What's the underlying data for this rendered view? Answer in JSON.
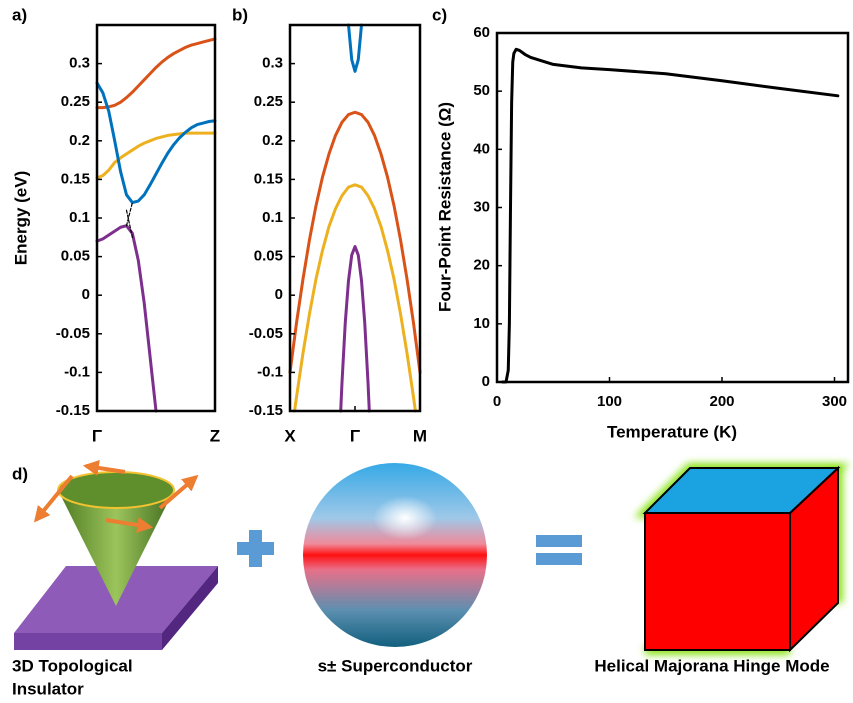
{
  "chart_data": [
    {
      "type": "line",
      "panel_label": "a)",
      "ylabel": "Energy (eV)",
      "xlim": [
        0,
        1
      ],
      "xticks": [
        {
          "value": 0,
          "label": "Γ"
        },
        {
          "value": 1,
          "label": "Z"
        }
      ],
      "ylim": [
        -0.15,
        0.35
      ],
      "yticks": [
        -0.15,
        -0.1,
        -0.05,
        0,
        0.05,
        0.1,
        0.15,
        0.2,
        0.25,
        0.3
      ],
      "x": [
        0,
        0.05,
        0.1,
        0.15,
        0.2,
        0.25,
        0.3,
        0.35,
        0.4,
        0.45,
        0.5,
        0.55,
        0.6,
        0.65,
        0.7,
        0.75,
        0.8,
        0.85,
        0.9,
        0.95,
        1
      ],
      "series": [
        {
          "color": "#d95319",
          "values": [
            0.243,
            0.243,
            0.244,
            0.246,
            0.25,
            0.256,
            0.263,
            0.271,
            0.279,
            0.287,
            0.295,
            0.302,
            0.308,
            0.313,
            0.317,
            0.321,
            0.324,
            0.326,
            0.328,
            0.33,
            0.332
          ]
        },
        {
          "color": "#edb120",
          "values": [
            0.152,
            0.155,
            0.162,
            0.172,
            0.178,
            0.183,
            0.188,
            0.193,
            0.197,
            0.2,
            0.203,
            0.205,
            0.207,
            0.208,
            0.209,
            0.21,
            0.21,
            0.21,
            0.21,
            0.21,
            0.21
          ]
        },
        {
          "color": "#0072bd",
          "values": [
            0.275,
            0.262,
            0.238,
            0.2,
            0.16,
            0.13,
            0.12,
            0.122,
            0.13,
            0.143,
            0.157,
            0.171,
            0.184,
            0.195,
            0.204,
            0.211,
            0.217,
            0.221,
            0.223,
            0.225,
            0.226
          ]
        },
        {
          "color": "#7e2f8e",
          "values": [
            0.07,
            0.073,
            0.078,
            0.083,
            0.088,
            0.09,
            0.08,
            0.045,
            -0.01,
            -0.08,
            -0.15,
            null,
            null,
            null,
            null,
            null,
            null,
            null,
            null,
            null,
            null
          ]
        },
        {
          "color": "#000000",
          "dashed": true,
          "values": [
            null,
            null,
            null,
            null,
            null,
            0.09,
            0.12,
            null,
            null,
            null,
            null,
            null,
            null,
            null,
            null,
            null,
            null,
            null,
            null,
            null,
            null
          ]
        },
        {
          "color": "#000000",
          "dashed": true,
          "values": [
            null,
            null,
            null,
            null,
            null,
            0.11,
            0.075,
            null,
            null,
            null,
            null,
            null,
            null,
            null,
            null,
            null,
            null,
            null,
            null,
            null,
            null
          ]
        }
      ]
    },
    {
      "type": "line",
      "panel_label": "b)",
      "xlim": [
        -1,
        1
      ],
      "xticks": [
        {
          "value": -1,
          "label": "X"
        },
        {
          "value": 0,
          "label": "Γ"
        },
        {
          "value": 1,
          "label": "M"
        }
      ],
      "ylim": [
        -0.15,
        0.35
      ],
      "yticks": [
        -0.15,
        -0.1,
        -0.05,
        0,
        0.05,
        0.1,
        0.15,
        0.2,
        0.25,
        0.3
      ],
      "series": [
        {
          "color": "#d95319",
          "x": [
            -1,
            -0.9,
            -0.8,
            -0.7,
            -0.6,
            -0.5,
            -0.4,
            -0.3,
            -0.2,
            -0.1,
            0,
            0.1,
            0.2,
            0.3,
            0.4,
            0.5,
            0.6,
            0.7,
            0.8,
            0.9,
            1
          ],
          "values": [
            -0.1,
            -0.036,
            0.021,
            0.072,
            0.116,
            0.153,
            0.183,
            0.207,
            0.224,
            0.234,
            0.237,
            0.234,
            0.224,
            0.207,
            0.183,
            0.153,
            0.116,
            0.072,
            0.021,
            -0.036,
            -0.1
          ]
        },
        {
          "color": "#edb120",
          "x": [
            -0.93,
            -0.9,
            -0.8,
            -0.7,
            -0.6,
            -0.5,
            -0.4,
            -0.3,
            -0.2,
            -0.1,
            0,
            0.1,
            0.2,
            0.3,
            0.4,
            0.5,
            0.6,
            0.7,
            0.8,
            0.9,
            0.93
          ],
          "values": [
            -0.15,
            -0.132,
            -0.075,
            -0.024,
            0.021,
            0.058,
            0.089,
            0.112,
            0.129,
            0.14,
            0.143,
            0.14,
            0.129,
            0.112,
            0.089,
            0.058,
            0.021,
            -0.024,
            -0.075,
            -0.132,
            -0.15
          ]
        },
        {
          "color": "#7e2f8e",
          "x": [
            -0.22,
            -0.2,
            -0.15,
            -0.1,
            -0.05,
            0,
            0.05,
            0.1,
            0.15,
            0.2,
            0.22
          ],
          "values": [
            -0.15,
            -0.113,
            -0.036,
            0.019,
            0.052,
            0.063,
            0.052,
            0.019,
            -0.036,
            -0.113,
            -0.15
          ]
        },
        {
          "color": "#0072bd",
          "x": [
            -0.1,
            -0.05,
            0,
            0.05,
            0.1
          ],
          "values": [
            0.35,
            0.305,
            0.29,
            0.305,
            0.35
          ]
        }
      ]
    },
    {
      "type": "line",
      "panel_label": "c)",
      "xlabel": "Temperature (K)",
      "ylabel": "Four-Point Resistance (Ω)",
      "xlim": [
        0,
        312
      ],
      "xticks": [
        0,
        100,
        200,
        300
      ],
      "ylim": [
        0,
        60
      ],
      "yticks": [
        0,
        10,
        20,
        30,
        40,
        50,
        60
      ],
      "series": [
        {
          "color": "#000000",
          "x": [
            5,
            8,
            10,
            11,
            12,
            13,
            14,
            15,
            17,
            20,
            25,
            30,
            50,
            75,
            100,
            150,
            200,
            250,
            303
          ],
          "values": [
            0,
            0,
            2,
            10,
            30,
            48,
            55,
            56.5,
            57.2,
            57,
            56.3,
            55.8,
            54.6,
            54,
            53.7,
            53,
            51.8,
            50.5,
            49.2
          ]
        }
      ]
    }
  ],
  "diagram": {
    "panel_label": "d)",
    "items": [
      {
        "label_lines": [
          "3D Topological",
          "Insulator"
        ]
      },
      {
        "label_lines": [
          "s± Superconductor"
        ]
      },
      {
        "label_lines": [
          "Helical Majorana Hinge Mode"
        ]
      }
    ]
  }
}
